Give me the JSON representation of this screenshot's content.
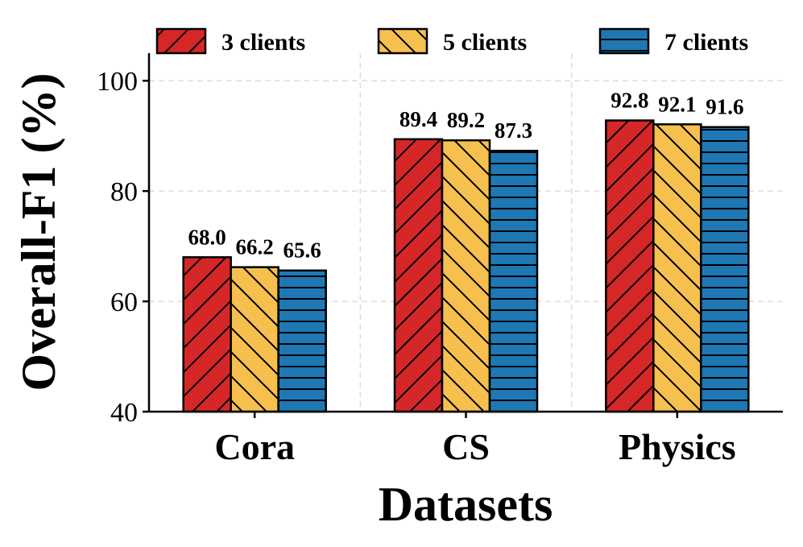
{
  "chart_data": {
    "type": "bar",
    "title": "",
    "xlabel": "Datasets",
    "ylabel": "Overall-F1 (%)",
    "categories": [
      "Cora",
      "CS",
      "Physics"
    ],
    "ylim": [
      40,
      105
    ],
    "yticks": [
      40,
      60,
      80,
      100
    ],
    "grid": true,
    "legend_position": "top",
    "series": [
      {
        "name": "3 clients",
        "values": [
          68.0,
          89.4,
          92.8
        ],
        "labels": [
          "68.0",
          "89.4",
          "92.8"
        ],
        "color": "#d62728",
        "hatch": "forward-diagonal"
      },
      {
        "name": "5 clients",
        "values": [
          66.2,
          89.2,
          92.1
        ],
        "labels": [
          "66.2",
          "89.2",
          "92.1"
        ],
        "color": "#f5c04e",
        "hatch": "back-diagonal"
      },
      {
        "name": "7 clients",
        "values": [
          65.6,
          87.3,
          91.6
        ],
        "labels": [
          "65.6",
          "87.3",
          "91.6"
        ],
        "color": "#1f77b4",
        "hatch": "horizontal"
      }
    ]
  }
}
